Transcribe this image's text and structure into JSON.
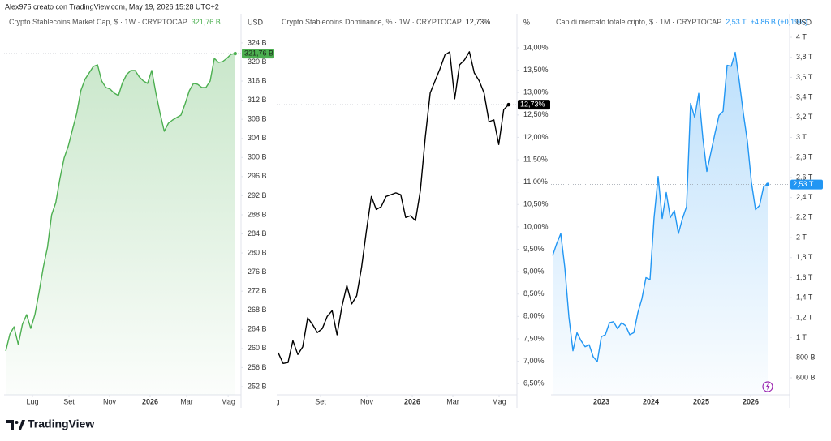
{
  "header": "Alex975 creato con TradingView.com, May 19, 2026 15:28 UTC+2",
  "brand": "TradingView",
  "chart_data": [
    {
      "type": "area",
      "title": "Crypto Stablecoins Market Cap, $ · 1W · CRYPTOCAP",
      "last_label": "321,76 B",
      "y_unit": "USD",
      "color": "#4caf50",
      "badge_text_color": "#1a2e1a",
      "grid": false,
      "values": [
        259.46,
        263.02,
        264.55,
        260.82,
        265.06,
        267.1,
        264.21,
        267.1,
        271.86,
        276.95,
        281.2,
        287.99,
        290.54,
        295.64,
        299.88,
        302.43,
        305.83,
        309.22,
        313.98,
        316.36,
        317.72,
        319.07,
        319.41,
        316.02,
        314.66,
        314.32,
        313.47,
        312.96,
        315.68,
        317.38,
        318.23,
        318.23,
        316.87,
        316.02,
        315.51,
        318.23,
        313.47,
        309.22,
        305.49,
        307.18,
        307.86,
        308.37,
        308.88,
        311.26,
        313.98,
        315.51,
        315.34,
        314.66,
        314.66,
        316.02,
        320.77,
        319.92,
        320.09,
        320.77,
        321.62,
        321.76
      ],
      "xlim": [
        -0.4,
        56.4
      ],
      "xticks": [
        {
          "value": 6.41,
          "label": "Lug"
        },
        {
          "value": 15.16,
          "label": "Set"
        },
        {
          "value": 24.89,
          "label": "Nov"
        },
        {
          "value": 34.61,
          "label": "2026"
        },
        {
          "value": 43.37,
          "label": "Mar"
        },
        {
          "value": 53.32,
          "label": "Mag"
        }
      ],
      "ylim": [
        250.3,
        330.1
      ],
      "yticks": [
        {
          "value": 252,
          "label": "252 B"
        },
        {
          "value": 256,
          "label": "256 B"
        },
        {
          "value": 260,
          "label": "260 B"
        },
        {
          "value": 264,
          "label": "264 B"
        },
        {
          "value": 268,
          "label": "268 B"
        },
        {
          "value": 272,
          "label": "272 B"
        },
        {
          "value": 276,
          "label": "276 B"
        },
        {
          "value": 280,
          "label": "280 B"
        },
        {
          "value": 284,
          "label": "284 B"
        },
        {
          "value": 288,
          "label": "288 B"
        },
        {
          "value": 292,
          "label": "292 B"
        },
        {
          "value": 296,
          "label": "296 B"
        },
        {
          "value": 300,
          "label": "300 B"
        },
        {
          "value": 304,
          "label": "304 B"
        },
        {
          "value": 308,
          "label": "308 B"
        },
        {
          "value": 312,
          "label": "312 B"
        },
        {
          "value": 316,
          "label": "316 B"
        },
        {
          "value": 320,
          "label": "320 B"
        },
        {
          "value": 324,
          "label": "324 B"
        }
      ]
    },
    {
      "type": "line",
      "title": "Crypto Stablecoins Dominance, % · 1W · CRYPTOCAP",
      "last_label": "12,73%",
      "y_unit": "%",
      "color": "#000000",
      "badge_text_color": "#ffffff",
      "grid": false,
      "values": [
        7.19,
        6.95,
        6.97,
        7.46,
        7.15,
        7.32,
        7.97,
        7.82,
        7.64,
        7.73,
        8.0,
        8.13,
        7.59,
        8.22,
        8.69,
        8.28,
        8.46,
        9.09,
        9.91,
        10.68,
        10.39,
        10.45,
        10.68,
        10.72,
        10.76,
        10.72,
        10.21,
        10.25,
        10.14,
        10.81,
        11.99,
        12.99,
        13.26,
        13.53,
        13.84,
        13.91,
        12.86,
        13.62,
        13.73,
        13.91,
        13.44,
        13.26,
        12.99,
        12.35,
        12.39,
        11.84,
        12.62,
        12.73
      ],
      "xlim": [
        -0.3,
        48.7
      ],
      "xticks": [
        {
          "value": -0.96,
          "label": "Lug"
        },
        {
          "value": 8.64,
          "label": "Set"
        },
        {
          "value": 18.08,
          "label": "Nov"
        },
        {
          "value": 27.35,
          "label": "2026"
        },
        {
          "value": 35.62,
          "label": "Mar"
        },
        {
          "value": 45.06,
          "label": "Mag"
        }
      ],
      "ylim": [
        6.25,
        14.76
      ],
      "yticks": [
        {
          "value": 6.5,
          "label": "6,50%"
        },
        {
          "value": 7,
          "label": "7,00%"
        },
        {
          "value": 7.5,
          "label": "7,50%"
        },
        {
          "value": 8,
          "label": "8,00%"
        },
        {
          "value": 8.5,
          "label": "8,50%"
        },
        {
          "value": 9,
          "label": "9,00%"
        },
        {
          "value": 9.5,
          "label": "9,50%"
        },
        {
          "value": 10,
          "label": "10,00%"
        },
        {
          "value": 10.5,
          "label": "10,50%"
        },
        {
          "value": 11,
          "label": "11,00%"
        },
        {
          "value": 11.5,
          "label": "11,50%"
        },
        {
          "value": 12,
          "label": "12,00%"
        },
        {
          "value": 12.5,
          "label": "12,50%"
        },
        {
          "value": 13,
          "label": "13,00%"
        },
        {
          "value": 13.5,
          "label": "13,50%"
        },
        {
          "value": 14,
          "label": "14,00%"
        }
      ]
    },
    {
      "type": "area",
      "title": "Cap di mercato totale cripto, $ · 1M · CRYPTOCAP",
      "last_label": "2,53 T",
      "change_label": "+4,86 B (+0,19%)",
      "y_unit": "USD",
      "color": "#2196f3",
      "badge_text_color": "#ffffff",
      "grid": false,
      "values": [
        1.82,
        1.94,
        2.04,
        1.7,
        1.21,
        0.87,
        1.05,
        0.97,
        0.91,
        0.93,
        0.81,
        0.76,
        1.01,
        1.03,
        1.15,
        1.16,
        1.09,
        1.15,
        1.12,
        1.03,
        1.05,
        1.25,
        1.39,
        1.6,
        1.58,
        2.2,
        2.61,
        2.19,
        2.45,
        2.2,
        2.27,
        2.04,
        2.19,
        2.31,
        3.34,
        3.2,
        3.44,
        3.0,
        2.66,
        2.85,
        3.04,
        3.22,
        3.26,
        3.72,
        3.71,
        3.85,
        3.56,
        3.24,
        2.96,
        2.55,
        2.28,
        2.32,
        2.51,
        2.53
      ],
      "xlim": [
        -0.4,
        58.4
      ],
      "xticks": [
        {
          "value": 12.0,
          "label": "2023"
        },
        {
          "value": 24.2,
          "label": "2024"
        },
        {
          "value": 36.6,
          "label": "2025"
        },
        {
          "value": 48.8,
          "label": "2026"
        }
      ],
      "ylim": [
        0.43,
        4.235
      ],
      "yticks": [
        {
          "value": 0.6,
          "label": "600 B"
        },
        {
          "value": 0.8,
          "label": "800 B"
        },
        {
          "value": 1,
          "label": "1 T"
        },
        {
          "value": 1.2,
          "label": "1,2 T"
        },
        {
          "value": 1.4,
          "label": "1,4 T"
        },
        {
          "value": 1.6,
          "label": "1,6 T"
        },
        {
          "value": 1.8,
          "label": "1,8 T"
        },
        {
          "value": 2,
          "label": "2 T"
        },
        {
          "value": 2.2,
          "label": "2,2 T"
        },
        {
          "value": 2.4,
          "label": "2,4 T"
        },
        {
          "value": 2.6,
          "label": "2,6 T"
        },
        {
          "value": 2.8,
          "label": "2,8 T"
        },
        {
          "value": 3,
          "label": "3 T"
        },
        {
          "value": 3.2,
          "label": "3,2 T"
        },
        {
          "value": 3.4,
          "label": "3,4 T"
        },
        {
          "value": 3.6,
          "label": "3,6 T"
        },
        {
          "value": 3.8,
          "label": "3,8 T"
        },
        {
          "value": 4,
          "label": "4 T"
        }
      ]
    }
  ]
}
